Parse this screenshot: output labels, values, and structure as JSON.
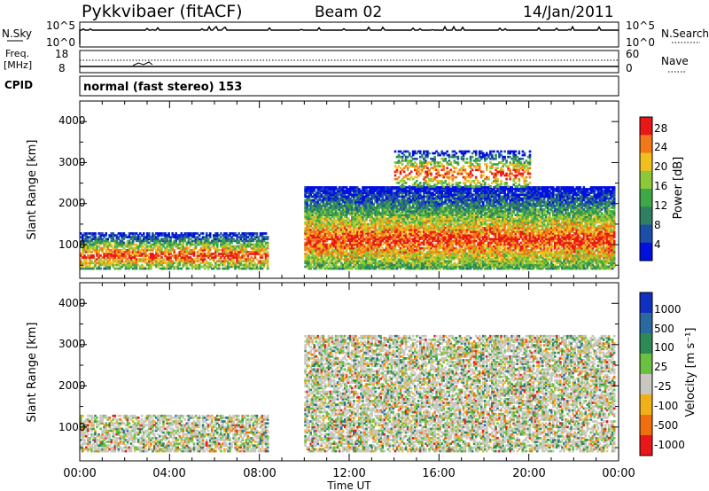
{
  "header": {
    "radar": "Pykkvibaer (fitACF)",
    "beam": "Beam 02",
    "date": "14/Jan/2011"
  },
  "noise_panel": {
    "left_label": "N.Sky",
    "left_ticks": [
      "10^5",
      "10^0"
    ],
    "right_ticks": [
      "10^5",
      "10^0"
    ],
    "right_label": "N.Search"
  },
  "freq_panel": {
    "left_label_1": "Freq.",
    "left_label_2": "[MHz]",
    "left_ticks": [
      "18",
      "8"
    ],
    "right_ticks": [
      "60",
      "0"
    ],
    "right_label": "Nave"
  },
  "cpid_panel": {
    "label": "CPID",
    "text": "normal (fast stereo) 153"
  },
  "chart_data": [
    {
      "type": "heatmap",
      "name": "power",
      "ylabel": "Slant Range [km]",
      "xlabel": "",
      "xlim": [
        "00:00",
        "24:00"
      ],
      "ylim": [
        180,
        4500
      ],
      "yticks": [
        "4000",
        "3000",
        "2000",
        "1000"
      ],
      "xticks": [],
      "colorbar": {
        "label": "Power [dB]",
        "ticks": [
          "28",
          "24",
          "20",
          "16",
          "12",
          "8",
          "4"
        ],
        "colors": [
          "#0010e0",
          "#1e4ea8",
          "#2e8060",
          "#3ea848",
          "#8cc838",
          "#f0c020",
          "#f07818",
          "#e81818"
        ],
        "range": [
          0,
          30
        ]
      },
      "regions": [
        {
          "t": [
            0.0,
            8.4
          ],
          "r": [
            400,
            1300
          ],
          "level": 0.6
        },
        {
          "t": [
            10.0,
            23.8
          ],
          "r": [
            400,
            2400
          ],
          "level": 0.75
        },
        {
          "t": [
            14.0,
            20.0
          ],
          "r": [
            2400,
            3300
          ],
          "level": 0.3
        }
      ]
    },
    {
      "type": "heatmap",
      "name": "velocity",
      "ylabel": "Slant Range [km]",
      "xlabel": "Time UT",
      "xlim": [
        "00:00",
        "24:00"
      ],
      "ylim": [
        180,
        4500
      ],
      "yticks": [
        "4000",
        "3000",
        "2000",
        "1000"
      ],
      "xticks": [
        "00:00",
        "04:00",
        "08:00",
        "12:00",
        "16:00",
        "20:00",
        "00:00"
      ],
      "colorbar": {
        "label": "Velocity [m s⁻¹]",
        "ticks": [
          "1000",
          "500",
          "100",
          "25",
          "-25",
          "-100",
          "-500",
          "-1000"
        ],
        "colors": [
          "#1030c0",
          "#2a6aa0",
          "#2e8a55",
          "#6ac040",
          "#c8c8c0",
          "#f0b018",
          "#f07010",
          "#e81818"
        ]
      },
      "regions": [
        {
          "t": [
            0.0,
            8.4
          ],
          "r": [
            400,
            1300
          ],
          "level": 0.5
        },
        {
          "t": [
            10.0,
            23.8
          ],
          "r": [
            400,
            3200
          ],
          "level": 0.5
        }
      ]
    }
  ]
}
